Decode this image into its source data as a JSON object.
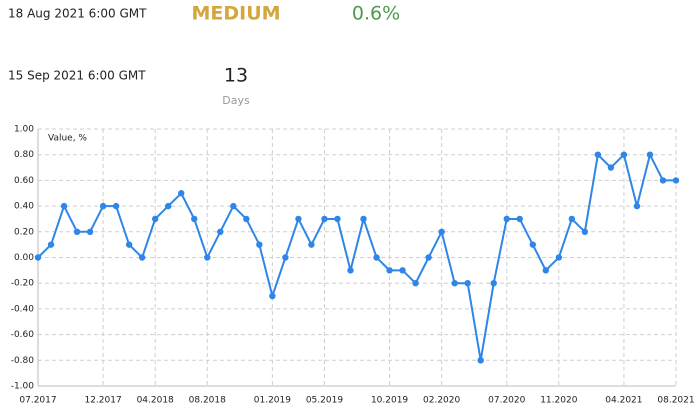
{
  "header": {
    "release_date": "18 Aug 2021 6:00 GMT",
    "importance": "MEDIUM",
    "actual": "0.6%",
    "next_date": "15 Sep 2021 6:00 GMT",
    "countdown": "13",
    "countdown_unit": "Days"
  },
  "chart_data": {
    "type": "line",
    "y_label": "Value, %",
    "categories": [
      "07.2017",
      null,
      null,
      null,
      null,
      "12.2017",
      null,
      null,
      null,
      "04.2018",
      null,
      null,
      null,
      "08.2018",
      null,
      null,
      null,
      null,
      "01.2019",
      null,
      null,
      null,
      "05.2019",
      null,
      null,
      null,
      null,
      "10.2019",
      null,
      null,
      null,
      "02.2020",
      null,
      null,
      null,
      null,
      "07.2020",
      null,
      null,
      null,
      "11.2020",
      null,
      null,
      null,
      null,
      "04.2021",
      null,
      null,
      null,
      "08.2021"
    ],
    "series": [
      {
        "name": "Value",
        "color": "#2f86e8",
        "values": [
          0.0,
          0.1,
          0.4,
          0.2,
          0.2,
          0.4,
          0.4,
          0.1,
          0.0,
          0.3,
          0.4,
          0.5,
          0.3,
          0.0,
          0.2,
          0.4,
          0.3,
          0.1,
          -0.3,
          0.0,
          0.3,
          0.1,
          0.3,
          0.3,
          -0.1,
          0.3,
          0.0,
          -0.1,
          -0.1,
          -0.2,
          0.0,
          0.2,
          -0.2,
          -0.2,
          -0.8,
          -0.2,
          0.3,
          0.3,
          0.1,
          -0.1,
          0.0,
          0.3,
          0.2,
          0.8,
          0.7,
          0.8,
          0.4,
          0.8,
          0.6,
          0.6
        ]
      }
    ],
    "ylim": [
      -1,
      1
    ],
    "yticks": [
      {
        "value": 1,
        "label": "1.00"
      },
      {
        "value": 0.8,
        "label": "0.80"
      },
      {
        "value": 0.6,
        "label": "0.60"
      },
      {
        "value": 0.4,
        "label": "0.40"
      },
      {
        "value": 0.2,
        "label": "0.20"
      },
      {
        "value": 0,
        "label": "0.00"
      },
      {
        "value": -0.2,
        "label": "-0.20"
      },
      {
        "value": -0.4,
        "label": "-0.40"
      },
      {
        "value": -0.6,
        "label": "-0.60"
      },
      {
        "value": -0.8,
        "label": "-0.80"
      },
      {
        "value": -1,
        "label": "-1.00"
      }
    ],
    "grid": true
  }
}
